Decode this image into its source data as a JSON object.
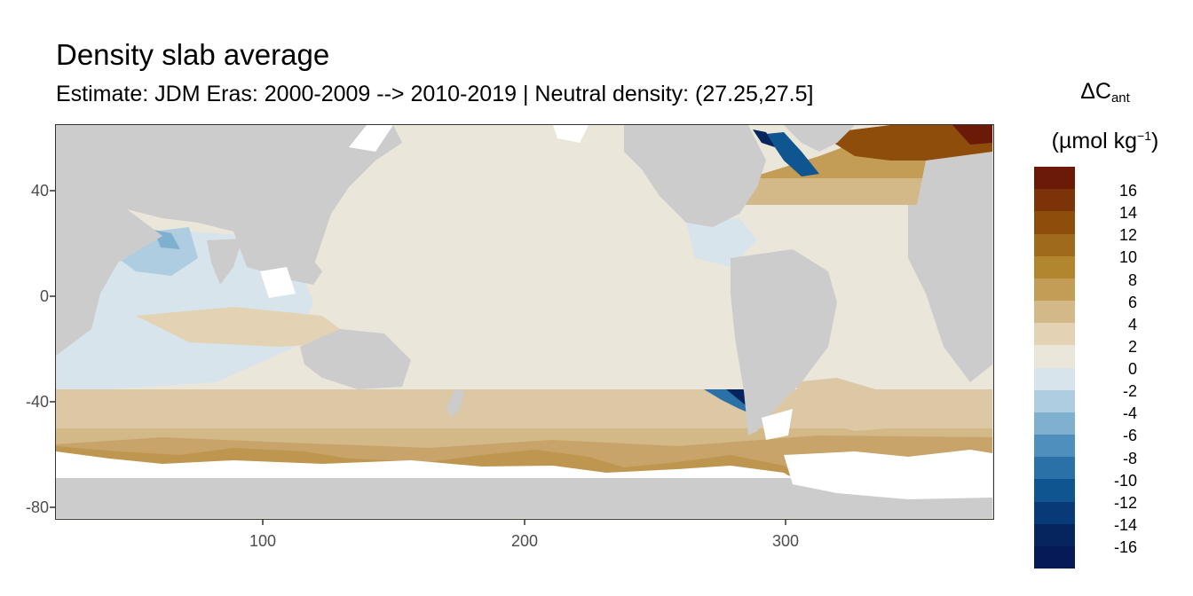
{
  "title": "Density slab average",
  "subtitle": "Estimate: JDM Eras: 2000-2009 --> 2010-2019 | Neutral density: (27.25,27.5]",
  "legend": {
    "title_main": "ΔC",
    "title_sub": "ant",
    "unit_prefix": "(µmol kg",
    "unit_sup": "−1",
    "unit_suffix": ")",
    "bins": [
      {
        "label": "16",
        "color": "#6a1a06"
      },
      {
        "label": "14",
        "color": "#7d3308"
      },
      {
        "label": "12",
        "color": "#8f4d0c"
      },
      {
        "label": "10",
        "color": "#a06a1c"
      },
      {
        "label": "8",
        "color": "#b2852f"
      },
      {
        "label": "6",
        "color": "#c39c55"
      },
      {
        "label": "4",
        "color": "#d3b888"
      },
      {
        "label": "2",
        "color": "#e3d3b4"
      },
      {
        "label": "0",
        "color": "#ebe6da"
      },
      {
        "label": "-2",
        "color": "#d7e4ec"
      },
      {
        "label": "-4",
        "color": "#aecde0"
      },
      {
        "label": "-6",
        "color": "#7fb0cf"
      },
      {
        "label": "-8",
        "color": "#4f8fbd"
      },
      {
        "label": "-10",
        "color": "#2a71a8"
      },
      {
        "label": "-12",
        "color": "#0f5590"
      },
      {
        "label": "-14",
        "color": "#083a78"
      },
      {
        "label": "-16",
        "color": "#06255f"
      }
    ],
    "extra_colors": [
      "#061a57"
    ]
  },
  "axes": {
    "x_ticks": [
      "100",
      "200",
      "300"
    ],
    "y_ticks": [
      "40",
      "0",
      "-40",
      "-80"
    ]
  },
  "map_colors": {
    "land": "#cccccc",
    "no_data": "#ffffff",
    "ocean_default": "#ebe6da"
  }
}
